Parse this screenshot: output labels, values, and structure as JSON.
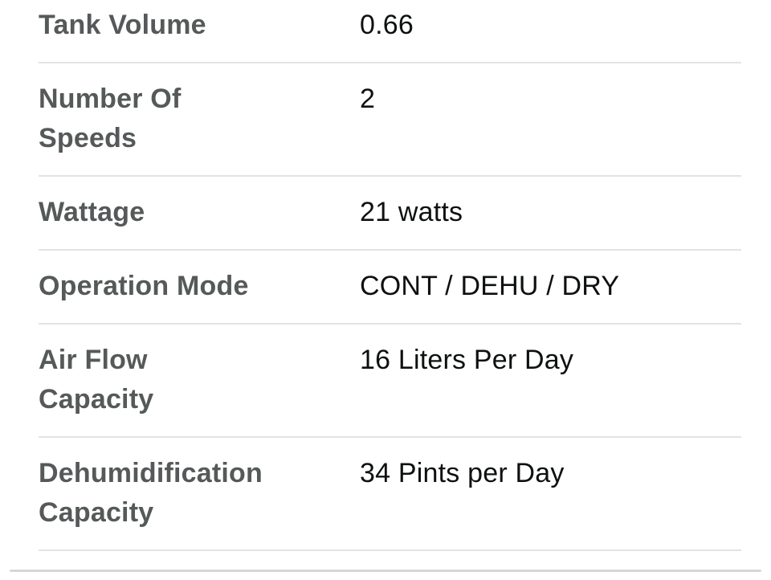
{
  "table": {
    "rows": [
      {
        "label": "Tank Volume",
        "value": "0.66"
      },
      {
        "label": "Number Of\nSpeeds",
        "value": "2"
      },
      {
        "label": "Wattage",
        "value": "21 watts"
      },
      {
        "label": "Operation Mode",
        "value": "CONT / DEHU / DRY"
      },
      {
        "label": "Air Flow\nCapacity",
        "value": "16 Liters Per Day"
      },
      {
        "label": "Dehumidification\nCapacity",
        "value": "34 Pints per Day"
      }
    ]
  },
  "colors": {
    "label": "#565959",
    "value": "#0f1111",
    "divider": "#e3e3e3",
    "bottom_rule": "#d7d7d7",
    "background": "#ffffff"
  }
}
